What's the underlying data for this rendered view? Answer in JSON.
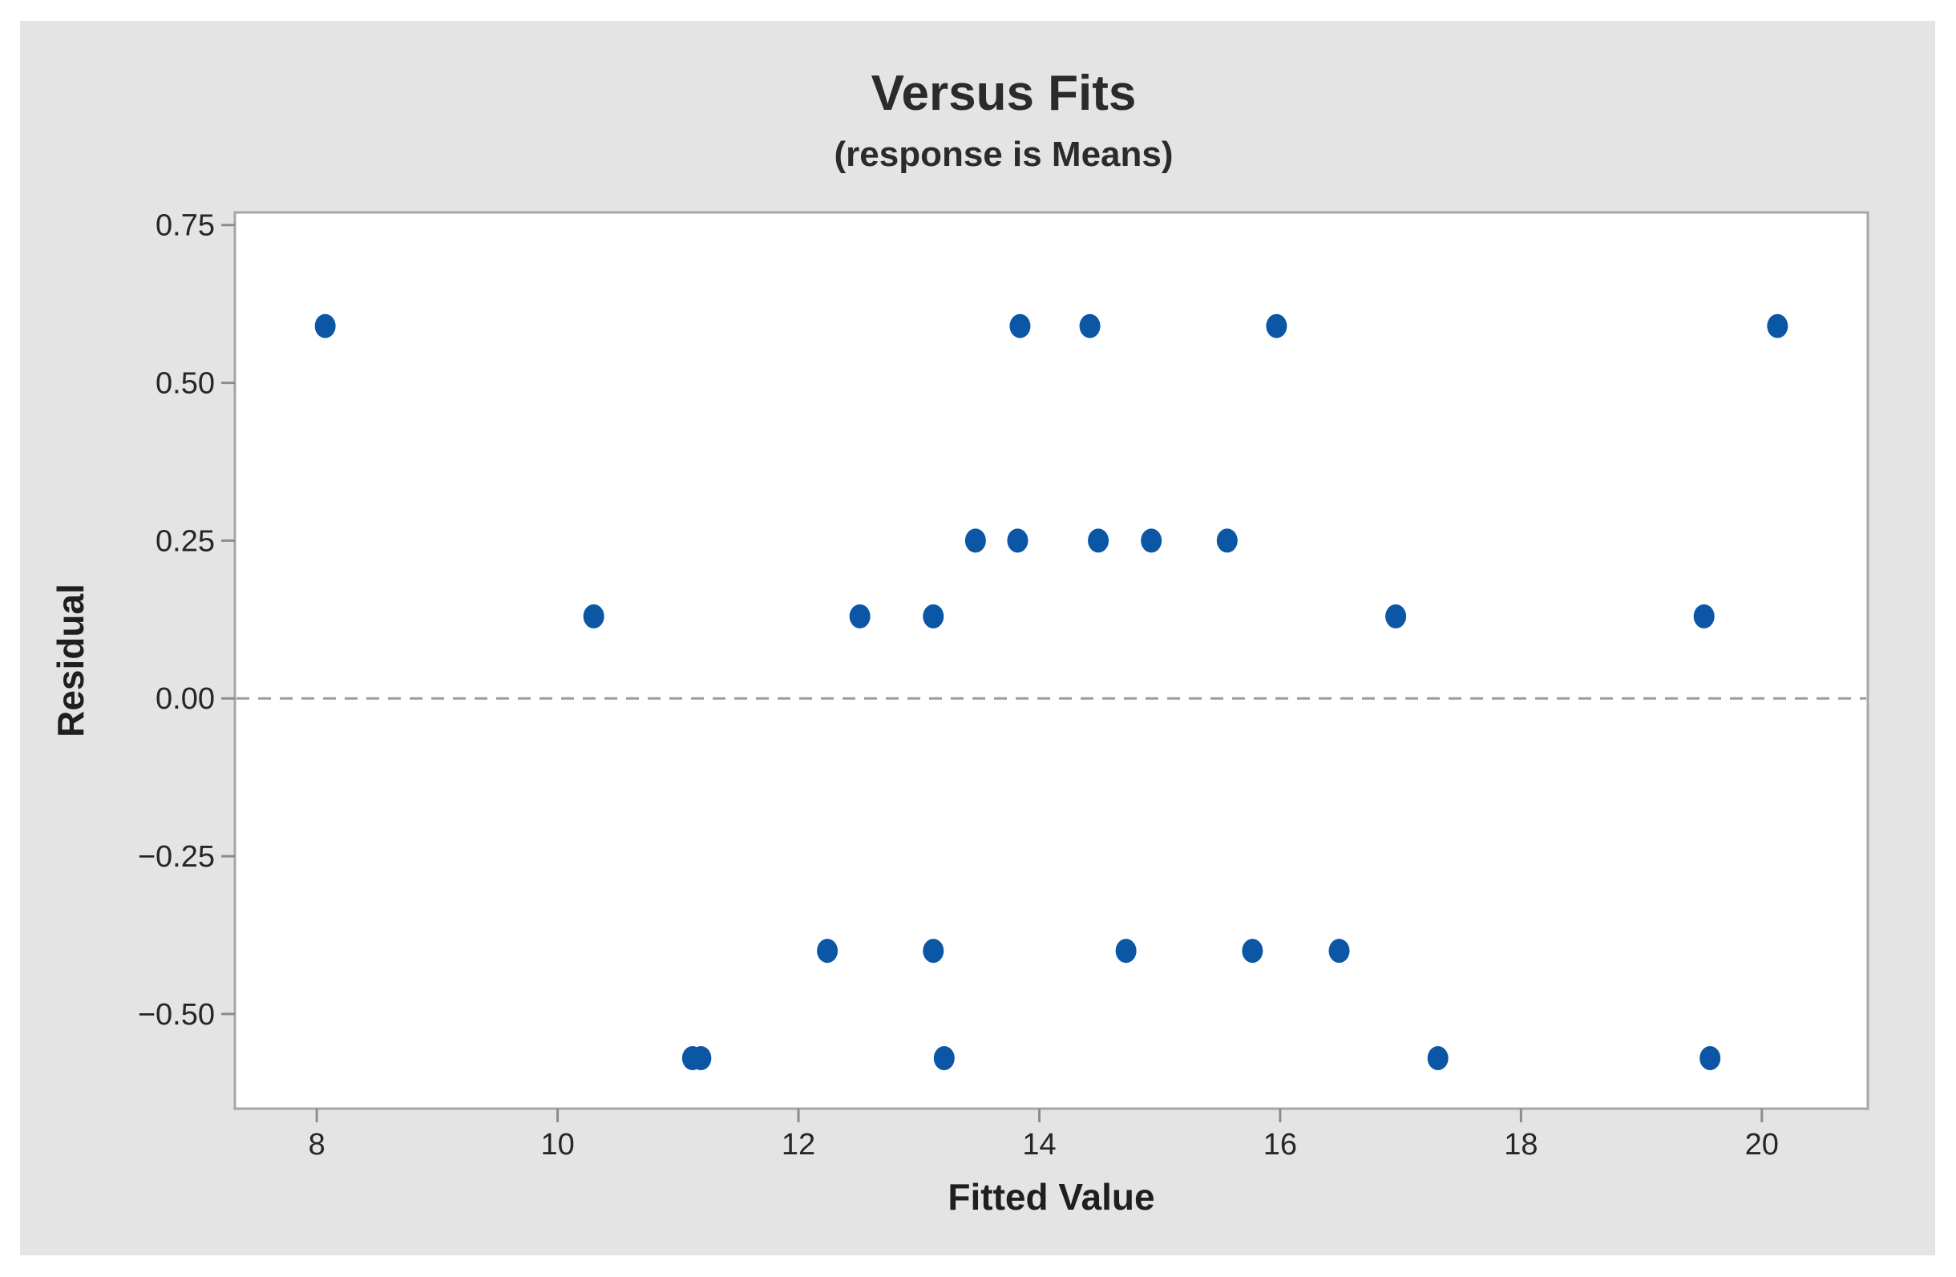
{
  "window": {
    "background": "#ffffff",
    "panel_background": "#e4e4e4"
  },
  "chart_data": {
    "type": "scatter",
    "title": "Versus Fits",
    "subtitle": "(response is Means)",
    "xlabel": "Fitted Value",
    "ylabel": "Residual",
    "xlim": [
      7.32,
      20.88
    ],
    "ylim": [
      -0.65,
      0.77
    ],
    "x_ticks": [
      8,
      10,
      12,
      14,
      16,
      18,
      20
    ],
    "y_ticks": [
      0.75,
      0.5,
      0.25,
      0,
      -0.25,
      -0.5
    ],
    "y_tick_labels": [
      "0.75",
      "0.50",
      "0.25",
      "0.00",
      "−0.25",
      "−0.50"
    ],
    "grid": false,
    "legend": "none",
    "reference_line_y": 0,
    "point_color": "#0b57a5",
    "frame_color": "#a6a6a6",
    "tick_color": "#8c8c8c",
    "reference_line_color": "#9b9b9b",
    "plot_background": "#ffffff",
    "points": [
      [
        8.07,
        0.59
      ],
      [
        13.84,
        0.59
      ],
      [
        14.42,
        0.59
      ],
      [
        15.97,
        0.59
      ],
      [
        20.13,
        0.59
      ],
      [
        13.47,
        0.25
      ],
      [
        13.82,
        0.25
      ],
      [
        14.49,
        0.25
      ],
      [
        14.93,
        0.25
      ],
      [
        15.56,
        0.25
      ],
      [
        10.3,
        0.13
      ],
      [
        12.51,
        0.13
      ],
      [
        13.12,
        0.13
      ],
      [
        16.96,
        0.13
      ],
      [
        19.52,
        0.13
      ],
      [
        12.24,
        -0.4
      ],
      [
        13.12,
        -0.4
      ],
      [
        14.72,
        -0.4
      ],
      [
        15.77,
        -0.4
      ],
      [
        16.49,
        -0.4
      ],
      [
        11.12,
        -0.57
      ],
      [
        11.19,
        -0.57
      ],
      [
        13.21,
        -0.57
      ],
      [
        17.31,
        -0.57
      ],
      [
        19.57,
        -0.57
      ]
    ]
  }
}
